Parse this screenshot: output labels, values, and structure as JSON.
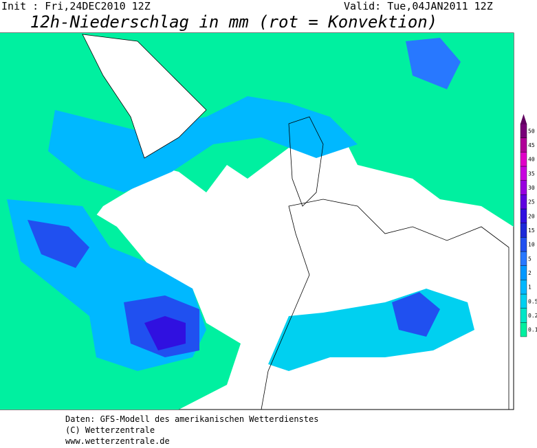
{
  "header": {
    "init": "Init : Fri,24DEC2010 12Z",
    "valid": "Valid: Tue,04JAN2011 12Z",
    "title": "12h-Niederschlag in mm (rot = Konvektion)"
  },
  "legend": {
    "levels": [
      0.1,
      0.2,
      0.5,
      1,
      2,
      5,
      10,
      15,
      20,
      25,
      30,
      35,
      40,
      45,
      50
    ],
    "colors": [
      "#00f0a0",
      "#00e6c8",
      "#00d0f0",
      "#00b8ff",
      "#0098ff",
      "#2878ff",
      "#2050f0",
      "#1c28d8",
      "#3010e0",
      "#6000e0",
      "#9800e0",
      "#c800e0",
      "#e000c8",
      "#b00098",
      "#780078"
    ]
  },
  "footer": {
    "lines": [
      "Daten: GFS-Modell des amerikanischen Wetterdienstes",
      "(C) Wetterzentrale",
      "www.wetterzentrale.de"
    ]
  }
}
